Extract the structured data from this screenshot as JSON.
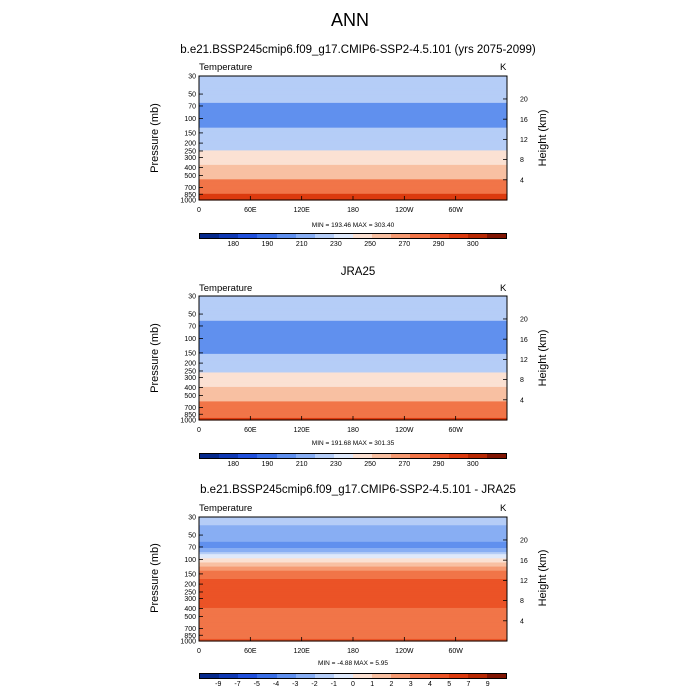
{
  "figure": {
    "title": "ANN"
  },
  "chart_data": [
    {
      "type": "heatmap",
      "title": "b.e21.BSSP245cmip6.f09_g17.CMIP6-SSP2-4.5.101 (yrs 2075-2099)",
      "left_label": "Temperature",
      "right_label": "K",
      "xlabel": "",
      "ylabel": "Pressure (mb)",
      "ylabel_right": "Height (km)",
      "x_ticks": [
        "0",
        "60E",
        "120E",
        "180",
        "120W",
        "60W"
      ],
      "y_ticks": [
        "30",
        "50",
        "70",
        "100",
        "150",
        "200",
        "250",
        "300",
        "400",
        "500",
        "700",
        "850",
        "1000"
      ],
      "y_ticks_right": [
        "20",
        "16",
        "12",
        "8",
        "4"
      ],
      "min_max_text": "MIN = 193.46  MAX = 303.40",
      "levels": [
        "180",
        "190",
        "210",
        "230",
        "250",
        "270",
        "290",
        "300"
      ],
      "colors": [
        "#05298c",
        "#0f39b4",
        "#2050dc",
        "#3a6fe6",
        "#6090ee",
        "#88aef3",
        "#b5cdf7",
        "#dfe9fb",
        "#fbe1d3",
        "#f8c0a2",
        "#f59a72",
        "#f17548",
        "#eb5326",
        "#dc3a0e",
        "#b72803",
        "#801402"
      ],
      "profile": [
        {
          "p": "30",
          "value": 217
        },
        {
          "p": "50",
          "value": 213
        },
        {
          "p": "70",
          "value": 209
        },
        {
          "p": "100",
          "value": 206
        },
        {
          "p": "150",
          "value": 212
        },
        {
          "p": "200",
          "value": 222
        },
        {
          "p": "250",
          "value": 231
        },
        {
          "p": "300",
          "value": 240
        },
        {
          "p": "400",
          "value": 254
        },
        {
          "p": "500",
          "value": 265
        },
        {
          "p": "700",
          "value": 281
        },
        {
          "p": "850",
          "value": 290
        },
        {
          "p": "1000",
          "value": 298
        }
      ]
    },
    {
      "type": "heatmap",
      "title": "JRA25",
      "left_label": "Temperature",
      "right_label": "K",
      "xlabel": "",
      "ylabel": "Pressure (mb)",
      "ylabel_right": "Height (km)",
      "x_ticks": [
        "0",
        "60E",
        "120E",
        "180",
        "120W",
        "60W"
      ],
      "y_ticks": [
        "30",
        "50",
        "70",
        "100",
        "150",
        "200",
        "250",
        "300",
        "400",
        "500",
        "700",
        "850",
        "1000"
      ],
      "y_ticks_right": [
        "20",
        "16",
        "12",
        "8",
        "4"
      ],
      "min_max_text": "MIN = 191.68  MAX = 301.35",
      "levels": [
        "180",
        "190",
        "210",
        "230",
        "250",
        "270",
        "290",
        "300"
      ],
      "colors": [
        "#05298c",
        "#0f39b4",
        "#2050dc",
        "#3a6fe6",
        "#6090ee",
        "#88aef3",
        "#b5cdf7",
        "#dfe9fb",
        "#fbe1d3",
        "#f8c0a2",
        "#f59a72",
        "#f17548",
        "#eb5326",
        "#dc3a0e",
        "#b72803",
        "#801402"
      ],
      "profile": [
        {
          "p": "30",
          "value": 216
        },
        {
          "p": "50",
          "value": 212
        },
        {
          "p": "70",
          "value": 208
        },
        {
          "p": "100",
          "value": 205
        },
        {
          "p": "150",
          "value": 210
        },
        {
          "p": "200",
          "value": 218
        },
        {
          "p": "250",
          "value": 227
        },
        {
          "p": "300",
          "value": 236
        },
        {
          "p": "400",
          "value": 250
        },
        {
          "p": "500",
          "value": 261
        },
        {
          "p": "700",
          "value": 277
        },
        {
          "p": "850",
          "value": 286
        },
        {
          "p": "1000",
          "value": 294
        }
      ]
    },
    {
      "type": "heatmap",
      "title": "b.e21.BSSP245cmip6.f09_g17.CMIP6-SSP2-4.5.101 - JRA25",
      "left_label": "Temperature",
      "right_label": "K",
      "xlabel": "",
      "ylabel": "Pressure (mb)",
      "ylabel_right": "Height (km)",
      "x_ticks": [
        "0",
        "60E",
        "120E",
        "180",
        "120W",
        "60W"
      ],
      "y_ticks": [
        "30",
        "50",
        "70",
        "100",
        "150",
        "200",
        "250",
        "300",
        "400",
        "500",
        "700",
        "850",
        "1000"
      ],
      "y_ticks_right": [
        "20",
        "16",
        "12",
        "8",
        "4"
      ],
      "min_max_text": "MIN =  -4.88  MAX =   5.95",
      "levels": [
        "-9",
        "-7",
        "-5",
        "-4",
        "-3",
        "-2",
        "-1",
        "0",
        "1",
        "2",
        "3",
        "4",
        "5",
        "7",
        "9"
      ],
      "colors": [
        "#05298c",
        "#0f39b4",
        "#2050dc",
        "#3a6fe6",
        "#6090ee",
        "#88aef3",
        "#b5cdf7",
        "#dfe9fb",
        "#fbe1d3",
        "#f8c0a2",
        "#f59a72",
        "#f17548",
        "#eb5326",
        "#dc3a0e",
        "#b72803",
        "#801402"
      ],
      "profile": [
        {
          "p": "30",
          "value": -1.5
        },
        {
          "p": "50",
          "value": -2.5
        },
        {
          "p": "70",
          "value": -3.5
        },
        {
          "p": "100",
          "value": 0.5
        },
        {
          "p": "150",
          "value": 3.5
        },
        {
          "p": "200",
          "value": 4.5
        },
        {
          "p": "250",
          "value": 4.5
        },
        {
          "p": "300",
          "value": 4.5
        },
        {
          "p": "400",
          "value": 4.0
        },
        {
          "p": "500",
          "value": 3.5
        },
        {
          "p": "700",
          "value": 3.5
        },
        {
          "p": "850",
          "value": 3.5
        },
        {
          "p": "1000",
          "value": 4.5
        }
      ]
    }
  ]
}
